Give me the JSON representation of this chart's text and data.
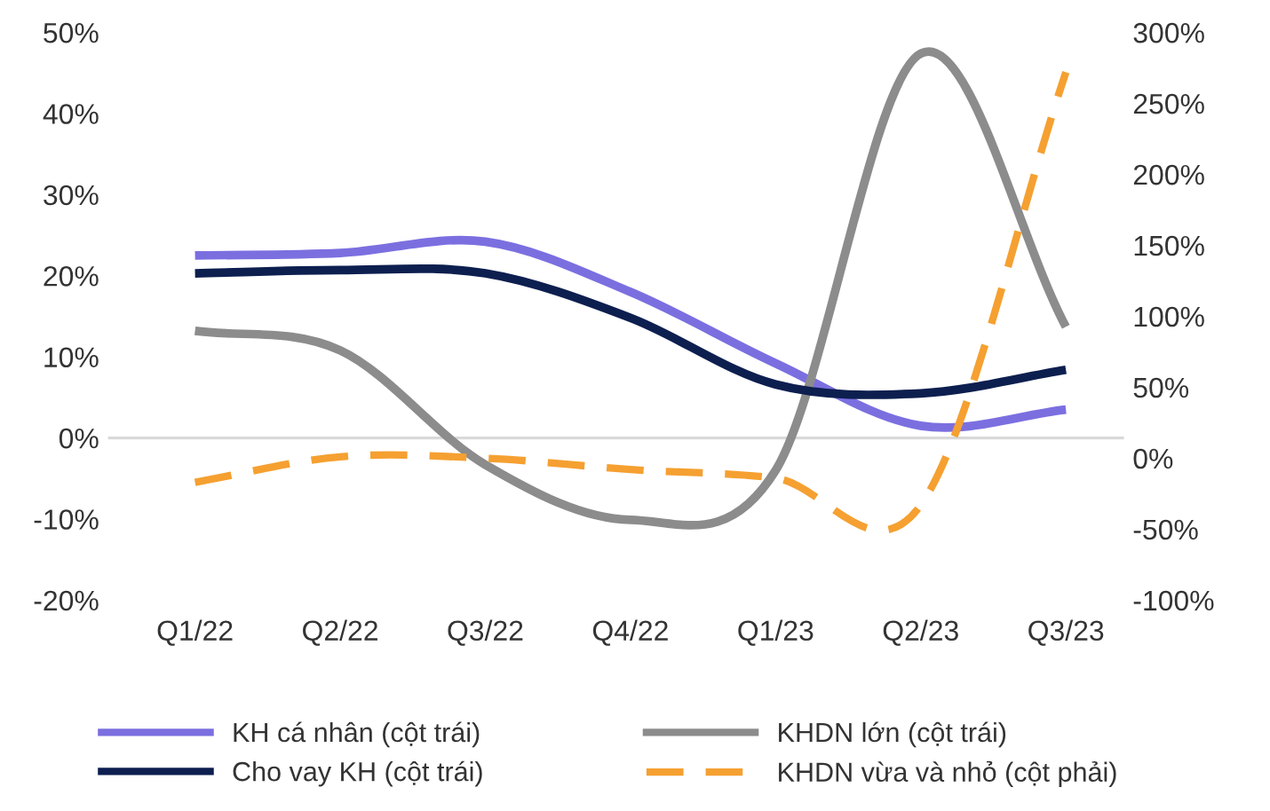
{
  "chart_data": {
    "type": "line",
    "categories": [
      "Q1/22",
      "Q2/22",
      "Q3/22",
      "Q4/22",
      "Q1/23",
      "Q2/23",
      "Q3/23"
    ],
    "series": [
      {
        "name": "KH cá nhân (cột trái)",
        "color": "#7b6fe0",
        "values": [
          22.5,
          22.8,
          24.2,
          18,
          9.2,
          1.5,
          3.5
        ]
      },
      {
        "name": "KHDN lớn (cột trái)",
        "color": "#8c8c8c",
        "values": [
          13.2,
          10.8,
          -3.3,
          -10.1,
          -4,
          47.4,
          13.7
        ]
      },
      {
        "name": "Cho vay KH (cột trái)",
        "color": "#0d1f4f",
        "values": [
          20.3,
          20.7,
          20.3,
          14.8,
          6.6,
          5.5,
          8.4
        ]
      },
      {
        "name": "KHDN vừa và nhỏ (cột phải)",
        "color": "#f5a031",
        "axis": "y2",
        "line_style": "dashed",
        "values": [
          -17,
          1,
          0,
          -8,
          -14,
          -33,
          272
        ]
      }
    ],
    "ref_lines": [
      {
        "axis": "y",
        "value": 0,
        "color": "#d9d9d9"
      }
    ],
    "ylim": [
      -20,
      50
    ],
    "yticks": [
      {
        "value": -20,
        "label": "-20%"
      },
      {
        "value": -10,
        "label": "-10%"
      },
      {
        "value": 0,
        "label": "0%"
      },
      {
        "value": 10,
        "label": "10%"
      },
      {
        "value": 20,
        "label": "20%"
      },
      {
        "value": 30,
        "label": "30%"
      },
      {
        "value": 40,
        "label": "40%"
      },
      {
        "value": 50,
        "label": "50%"
      }
    ],
    "y2lim": [
      -100,
      300
    ],
    "y2ticks": [
      {
        "value": -100,
        "label": "-100%"
      },
      {
        "value": -50,
        "label": "-50%"
      },
      {
        "value": 0,
        "label": "0%"
      },
      {
        "value": 50,
        "label": "50%"
      },
      {
        "value": 100,
        "label": "100%"
      },
      {
        "value": 150,
        "label": "150%"
      },
      {
        "value": 200,
        "label": "200%"
      },
      {
        "value": 250,
        "label": "250%"
      },
      {
        "value": 300,
        "label": "300%"
      }
    ],
    "grid": false,
    "legend": "bottom",
    "line_style": "solid",
    "marker": "none"
  }
}
